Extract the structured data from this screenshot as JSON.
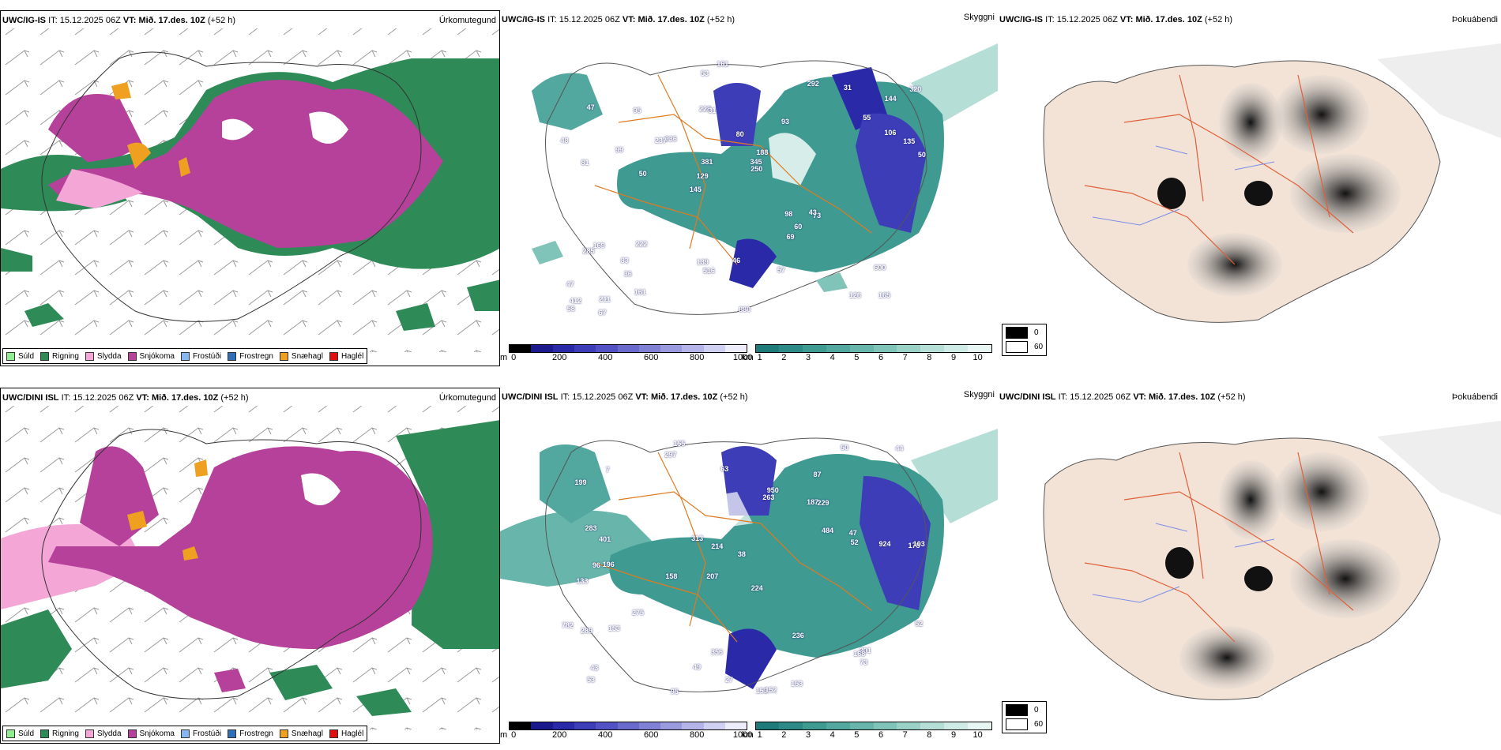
{
  "rows": [
    {
      "precip": {
        "title_model": "UWC/IG-IS",
        "title_it_label": "IT:",
        "title_it": "15.12.2025 06Z",
        "title_vt_label": "VT:",
        "title_vt": "Mið. 17.des. 10Z",
        "title_lead": "(+52 h)",
        "right_label": "Úrkomutegund"
      },
      "vis": {
        "title_model": "UWC/IG-IS",
        "title_it_label": "IT:",
        "title_it": "15.12.2025 06Z",
        "title_vt_label": "VT:",
        "title_vt": "Mið. 17.des. 10Z",
        "title_lead": "(+52 h)",
        "right_label": "Skyggni"
      },
      "fog": {
        "title_model": "UWC/IG-IS",
        "title_it_label": "IT:",
        "title_it": "15.12.2025 06Z",
        "title_vt_label": "VT:",
        "title_vt": "Mið. 17.des. 10Z",
        "title_lead": "(+52 h)",
        "right_label": "Þokuábendi"
      },
      "labels": [
        "165",
        "81",
        "144",
        "145",
        "93",
        "211",
        "228",
        "80",
        "169",
        "236",
        "47",
        "36",
        "31",
        "188",
        "73",
        "47",
        "53",
        "50",
        "98",
        "106",
        "129",
        "139",
        "381",
        "95",
        "292",
        "222",
        "126",
        "600",
        "43",
        "880",
        "237",
        "99",
        "69",
        "161",
        "135",
        "345",
        "412",
        "516",
        "250",
        "285",
        "55",
        "320",
        "60",
        "57",
        "83",
        "67",
        "58",
        "46",
        "31",
        "161",
        "50",
        "48"
      ]
    },
    {
      "precip": {
        "title_model": "UWC/DINI ISL",
        "title_it_label": "IT:",
        "title_it": "15.12.2025 06Z",
        "title_vt_label": "VT:",
        "title_vt": "Mið. 17.des. 10Z",
        "title_lead": "(+52 h)",
        "right_label": "Úrkomutegund"
      },
      "vis": {
        "title_model": "UWC/DINI ISL",
        "title_it_label": "IT:",
        "title_it": "15.12.2025 06Z",
        "title_vt_label": "VT:",
        "title_vt": "Mið. 17.des. 10Z",
        "title_lead": "(+52 h)",
        "right_label": "Skyggni"
      },
      "fog": {
        "title_model": "UWC/DINI ISL",
        "title_it_label": "IT:",
        "title_it": "15.12.2025 06Z",
        "title_vt_label": "VT:",
        "title_vt": "Mið. 17.des. 10Z",
        "title_lead": "(+52 h)",
        "right_label": "Þokuábendi"
      },
      "labels": [
        "155",
        "87",
        "178",
        "207",
        "224",
        "196",
        "199",
        "187",
        "133",
        "263",
        "38",
        "53",
        "297",
        "158",
        "153",
        "152",
        "356",
        "50",
        "484",
        "275",
        "401",
        "96",
        "103",
        "924",
        "782",
        "283",
        "214",
        "52",
        "201",
        "289",
        "168",
        "950",
        "153",
        "313",
        "236",
        "52",
        "47",
        "49",
        "44",
        "63",
        "43",
        "95",
        "153",
        "7",
        "27",
        "229",
        "73"
      ]
    }
  ],
  "precip_legend": [
    {
      "label": "Súld",
      "color": "#90ee90"
    },
    {
      "label": "Rigning",
      "color": "#2e8b57"
    },
    {
      "label": "Slydda",
      "color": "#f4a6d7"
    },
    {
      "label": "Snjókoma",
      "color": "#b5419a"
    },
    {
      "label": "Frostúði",
      "color": "#87b6f0"
    },
    {
      "label": "Frostregn",
      "color": "#2f6fb5"
    },
    {
      "label": "Snæhagl",
      "color": "#f0a020"
    },
    {
      "label": "Haglél",
      "color": "#e01010"
    }
  ],
  "height_bar": {
    "unit": "m",
    "ticks": [
      "0",
      "200",
      "400",
      "600",
      "800",
      "1000"
    ],
    "colors": [
      "#000000",
      "#1a1a8c",
      "#2a2aa8",
      "#3d3db8",
      "#5252c4",
      "#6a6acc",
      "#8080d4",
      "#9a9ade",
      "#b4b4e8",
      "#d0d0f2",
      "#ececfa"
    ]
  },
  "vis_bar": {
    "unit": "km",
    "ticks": [
      "1",
      "2",
      "3",
      "4",
      "5",
      "6",
      "7",
      "8",
      "9",
      "10"
    ],
    "colors": [
      "#1f7a7a",
      "#2e8a86",
      "#3f9a92",
      "#52a89e",
      "#68b6ab",
      "#80c4b9",
      "#9ad1c7",
      "#b4ded6",
      "#cfebe6",
      "#e8f6f3"
    ]
  },
  "fog_legend": [
    {
      "label": "0",
      "color": "#000000"
    },
    {
      "label": "60",
      "color": "#ffffff"
    }
  ]
}
